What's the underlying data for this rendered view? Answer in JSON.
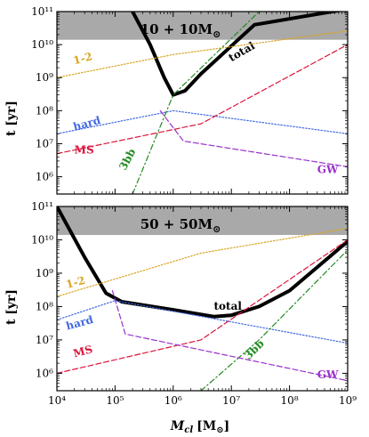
{
  "figure": {
    "ylabel": "t [yr]",
    "xlabel_main": "M",
    "xlabel_sub": "cl",
    "xlabel_unit": "[M",
    "xlabel_unit_sub": "⊙",
    "xlabel_unit_close": "]"
  },
  "chart_data": [
    {
      "type": "line",
      "title": "10 + 10M",
      "title_sub": "⊙",
      "xscale": "log",
      "yscale": "log",
      "xlim": [
        10000,
        1000000000
      ],
      "ylim": [
        300000,
        100000000000
      ],
      "x_ticks": [
        "10^4",
        "10^5",
        "10^6",
        "10^7",
        "10^8",
        "10^9"
      ],
      "y_ticks": [
        "10^6",
        "10^7",
        "10^8",
        "10^9",
        "10^10",
        "10^11"
      ],
      "shaded_region": {
        "y_from": 14000000000,
        "y_to": 100000000000,
        "color": "#a9a9a9"
      },
      "series": [
        {
          "name": "total",
          "color": "#000000",
          "style": "solid",
          "width": 4,
          "x": [
            200000,
            400000,
            700000,
            1000000,
            1600000,
            3000000,
            25000000,
            1000000000
          ],
          "y": [
            100000000000,
            10000000000,
            1000000000,
            300000000,
            400000000,
            1300000000,
            40000000000,
            120000000000
          ],
          "label_at": {
            "x": 10000000,
            "y": 3000000000,
            "rotate": -30
          }
        },
        {
          "name": "1-2",
          "color": "#daa520",
          "style": "dotted",
          "width": 1.2,
          "x": [
            10000,
            1000000,
            100000000,
            1000000000
          ],
          "y": 1000000000,
          "y_end": [
            1000000000,
            5000000000,
            15000000000,
            26000000000
          ],
          "label_at": {
            "x": 20000,
            "y": 2500000000,
            "rotate": -15
          }
        },
        {
          "name": "hard",
          "color": "#4169e1",
          "style": "dotted",
          "width": 1.2,
          "x": [
            10000,
            1000000,
            1000000000
          ],
          "y": [
            20000000,
            100000000,
            20000000
          ],
          "label_at": {
            "x": 20000,
            "y": 25000000,
            "rotate": -15
          }
        },
        {
          "name": "MS",
          "color": "#dc143c",
          "style": "dashed",
          "width": 1.2,
          "x": [
            10000,
            3000000,
            1000000000
          ],
          "y": [
            5000000,
            40000000,
            10000000000
          ],
          "label_at": {
            "x": 20000,
            "y": 5000000,
            "rotate": 0
          }
        },
        {
          "name": "3bb",
          "color": "#228b22",
          "style": "dashdot",
          "width": 1.2,
          "x": [
            200000,
            1000000,
            30000000
          ],
          "y": [
            300000,
            300000000,
            100000000000
          ],
          "label_at": {
            "x": 150000,
            "y": 1500000,
            "rotate": -62
          }
        },
        {
          "name": "GW",
          "color": "#9932cc",
          "style": "dashed",
          "width": 1.2,
          "x": [
            600000,
            1500000,
            1000000000
          ],
          "y": [
            100000000,
            12000000,
            2000000
          ],
          "label_at": {
            "x": 300000000,
            "y": 1300000,
            "rotate": 0
          }
        }
      ]
    },
    {
      "type": "line",
      "title": "50 + 50M",
      "title_sub": "⊙",
      "xscale": "log",
      "yscale": "log",
      "xlim": [
        10000,
        1000000000
      ],
      "ylim": [
        300000,
        100000000000
      ],
      "x_ticks": [
        "10^4",
        "10^5",
        "10^6",
        "10^7",
        "10^8",
        "10^9"
      ],
      "y_ticks": [
        "10^6",
        "10^7",
        "10^8",
        "10^9",
        "10^10",
        "10^11"
      ],
      "shaded_region": {
        "y_from": 14000000000,
        "y_to": 100000000000,
        "color": "#a9a9a9"
      },
      "series": [
        {
          "name": "total",
          "color": "#000000",
          "style": "solid",
          "width": 4,
          "x": [
            10000,
            30000,
            70000,
            130000,
            1000000,
            5000000,
            10000000,
            30000000,
            100000000,
            1000000000
          ],
          "y": [
            100000000000,
            3000000000,
            250000000,
            140000000,
            80000000,
            50000000,
            55000000,
            100000000,
            300000000,
            9000000000
          ],
          "label_at": {
            "x": 5000000,
            "y": 80000000,
            "rotate": 0
          }
        },
        {
          "name": "1-2",
          "color": "#daa520",
          "style": "dotted",
          "width": 1.2,
          "x": [
            10000,
            3000000,
            1000000000
          ],
          "y": [
            200000000,
            4000000000,
            22000000000
          ],
          "label_at": {
            "x": 15000,
            "y": 350000000,
            "rotate": -15
          }
        },
        {
          "name": "hard",
          "color": "#4169e1",
          "style": "dotted",
          "width": 1.2,
          "x": [
            10000,
            100000,
            1000000000
          ],
          "y": [
            40000000,
            150000000,
            8000000
          ],
          "label_at": {
            "x": 15000,
            "y": 20000000,
            "rotate": -15
          }
        },
        {
          "name": "MS",
          "color": "#dc143c",
          "style": "dashed",
          "width": 1.2,
          "x": [
            10000,
            3000000,
            1000000000
          ],
          "y": [
            1000000,
            10000000,
            10000000000
          ],
          "label_at": {
            "x": 20000,
            "y": 3000000,
            "rotate": -15
          }
        },
        {
          "name": "3bb",
          "color": "#228b22",
          "style": "dashdot",
          "width": 1.2,
          "x": [
            3000000,
            30000000,
            1000000000
          ],
          "y": [
            300000,
            10000000,
            5000000000
          ],
          "label_at": {
            "x": 20000000,
            "y": 2500000,
            "rotate": -45
          }
        },
        {
          "name": "GW",
          "color": "#9932cc",
          "style": "dashed",
          "width": 1.2,
          "x": [
            90000,
            150000,
            1000000000
          ],
          "y": [
            300000000,
            15000000,
            600000
          ],
          "label_at": {
            "x": 300000000,
            "y": 700000,
            "rotate": 0
          }
        }
      ]
    }
  ]
}
